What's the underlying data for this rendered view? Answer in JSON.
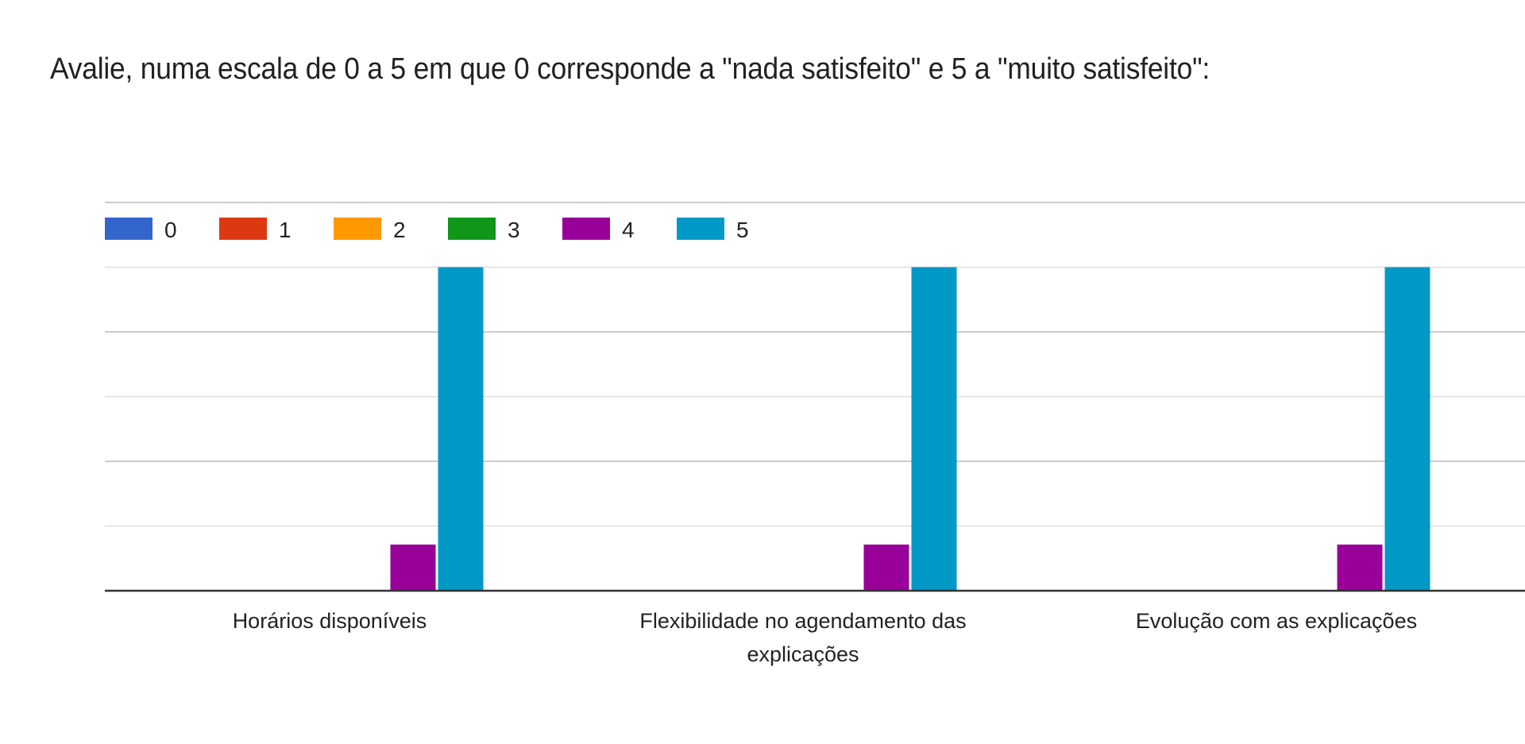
{
  "question": {
    "title": "Avalie, numa escala de 0 a 5 em que 0 corresponde a \"nada satisfeito\" e 5 a \"muito satisfeito\":"
  },
  "chart_data": {
    "type": "bar",
    "title": "Avalie, numa escala de 0 a 5 em que 0 corresponde a \"nada satisfeito\" e 5 a \"muito satisfeito\":",
    "xlabel": "",
    "ylabel": "",
    "categories": [
      [
        "Horários disponíveis"
      ],
      [
        "Flexibilidade no agendamento das",
        "explicações"
      ],
      [
        "Evolução com as explicações"
      ]
    ],
    "series": [
      {
        "name": "0",
        "color": "#3366cc",
        "values": [
          0,
          0,
          0
        ]
      },
      {
        "name": "1",
        "color": "#dc3912",
        "values": [
          0,
          0,
          0
        ]
      },
      {
        "name": "2",
        "color": "#ff9900",
        "values": [
          0,
          0,
          0
        ]
      },
      {
        "name": "3",
        "color": "#109618",
        "values": [
          0,
          0,
          0
        ]
      },
      {
        "name": "4",
        "color": "#990099",
        "values": [
          1,
          1,
          1
        ]
      },
      {
        "name": "5",
        "color": "#0099c6",
        "values": [
          7,
          7,
          7
        ]
      }
    ],
    "ylim": [
      0,
      8.4
    ],
    "gridlines": 6,
    "grid": true,
    "y_tick_labels_visible": false,
    "legend": "top-left"
  }
}
